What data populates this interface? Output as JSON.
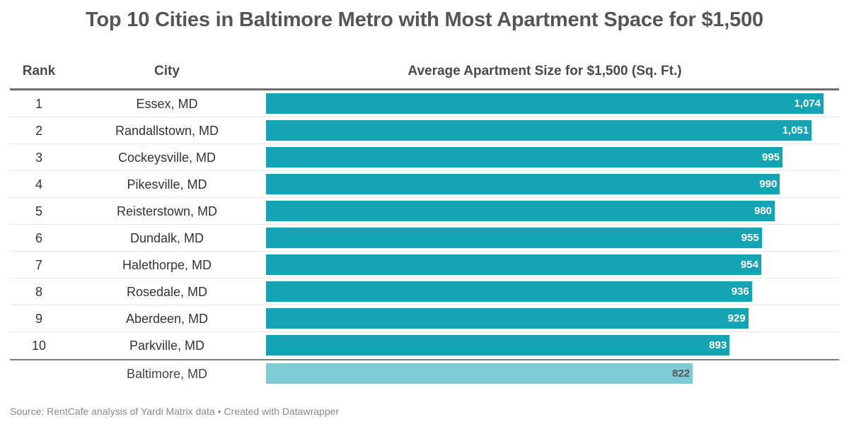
{
  "chart_data": {
    "type": "bar",
    "orientation": "horizontal",
    "title": "Top 10 Cities in Baltimore Metro with Most Apartment Space for $1,500",
    "columns": [
      "Rank",
      "City",
      "Average Apartment Size for $1,500 (Sq. Ft.)"
    ],
    "xlabel": "Average Apartment Size for $1,500 (Sq. Ft.)",
    "ylabel": "",
    "xlim": [
      0,
      1074
    ],
    "grid": false,
    "rows": [
      {
        "rank": "1",
        "city": "Essex, MD",
        "value": 1074,
        "label": "1,074"
      },
      {
        "rank": "2",
        "city": "Randallstown, MD",
        "value": 1051,
        "label": "1,051"
      },
      {
        "rank": "3",
        "city": "Cockeysville, MD",
        "value": 995,
        "label": "995"
      },
      {
        "rank": "4",
        "city": "Pikesville, MD",
        "value": 990,
        "label": "990"
      },
      {
        "rank": "5",
        "city": "Reisterstown, MD",
        "value": 980,
        "label": "980"
      },
      {
        "rank": "6",
        "city": "Dundalk, MD",
        "value": 955,
        "label": "955"
      },
      {
        "rank": "7",
        "city": "Halethorpe, MD",
        "value": 954,
        "label": "954"
      },
      {
        "rank": "8",
        "city": "Rosedale, MD",
        "value": 936,
        "label": "936"
      },
      {
        "rank": "9",
        "city": "Aberdeen, MD",
        "value": 929,
        "label": "929"
      },
      {
        "rank": "10",
        "city": "Parkville, MD",
        "value": 893,
        "label": "893"
      }
    ],
    "reference": {
      "rank": "",
      "city": "Baltimore, MD",
      "value": 822,
      "label": "822"
    },
    "colors": {
      "bar": "#15a4b4",
      "reference_bar": "#7fcbd4"
    },
    "source": "Source: RentCafe analysis of Yardi Matrix data • Created with Datawrapper"
  }
}
